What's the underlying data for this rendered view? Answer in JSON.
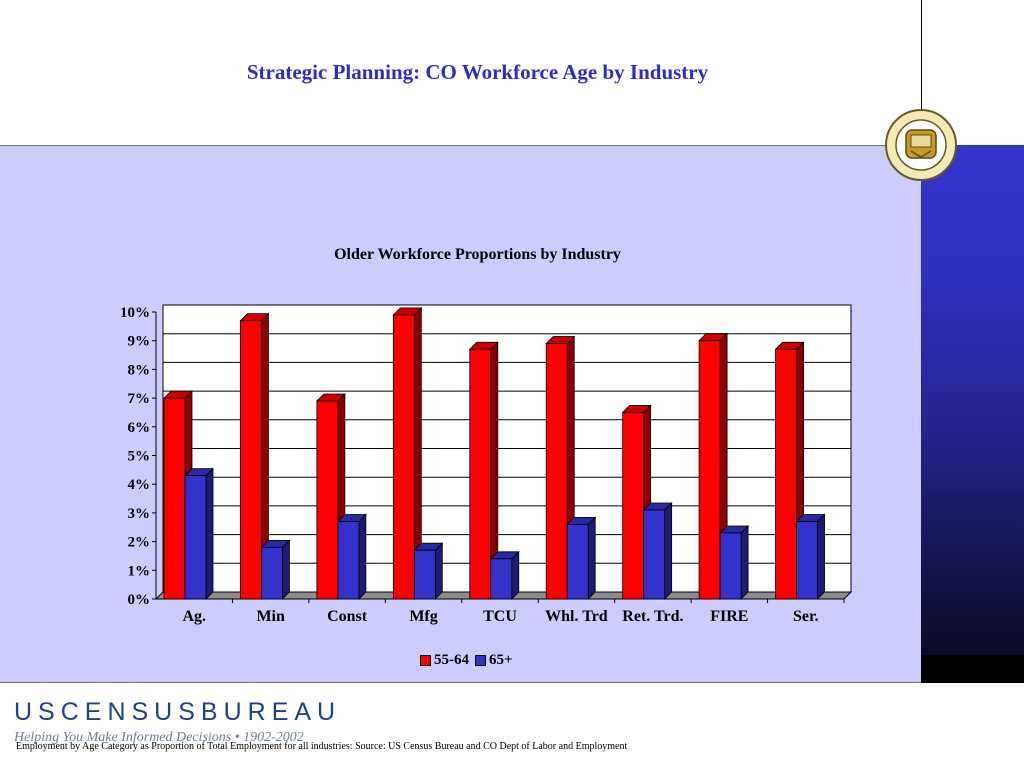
{
  "slide_title": "Strategic Planning: CO Workforce Age by Industry",
  "seal": {
    "name": "US Department of Commerce Bureau of the Census seal"
  },
  "chart_data": {
    "type": "bar",
    "title": "Older Workforce Proportions by Industry",
    "categories": [
      "Ag.",
      "Min",
      "Const",
      "Mfg",
      "TCU",
      "Whl. Trd",
      "Ret. Trd.",
      "FIRE",
      "Ser."
    ],
    "series": [
      {
        "name": "55-64",
        "color": "#ff0000",
        "values": [
          7.0,
          9.7,
          6.9,
          9.9,
          8.7,
          8.9,
          6.5,
          9.0,
          8.7
        ]
      },
      {
        "name": "65+",
        "color": "#3333cc",
        "values": [
          4.3,
          1.8,
          2.7,
          1.7,
          1.4,
          2.6,
          3.1,
          2.3,
          2.7
        ]
      }
    ],
    "y_ticks": [
      "0%",
      "1%",
      "2%",
      "3%",
      "4%",
      "5%",
      "6%",
      "7%",
      "8%",
      "9%",
      "10%"
    ],
    "ylim": [
      0,
      10
    ],
    "y_unit": "%",
    "grid": true,
    "legend_position": "bottom-center",
    "style": "3d-clustered-bar"
  },
  "logo": {
    "text": "USCENSUSBUREAU",
    "tagline": "Helping You Make Informed Decisions • 1902-2002"
  },
  "footnote": "Employment by Age Category as Proportion of Total Employment  for all industries: Source: US Census Bureau and CO Dept of Labor and Employment"
}
